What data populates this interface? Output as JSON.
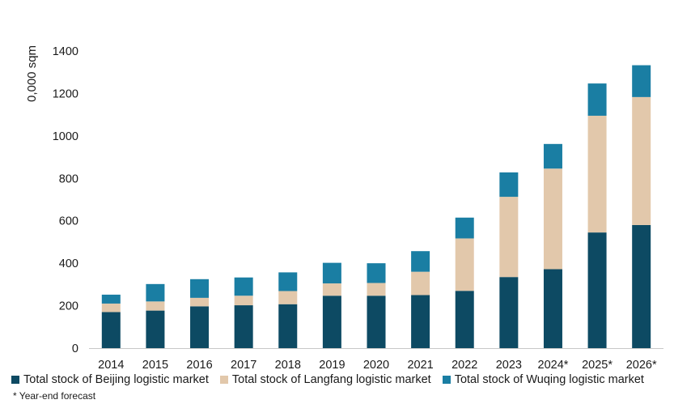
{
  "chart_data": {
    "type": "bar",
    "stacked": true,
    "ylabel": "0,000 sqm",
    "ylim": [
      0,
      1400
    ],
    "yticks": [
      0,
      200,
      400,
      600,
      800,
      1000,
      1200,
      1400
    ],
    "grid": false,
    "legend_position": "bottom",
    "categories": [
      "2014",
      "2015",
      "2016",
      "2017",
      "2018",
      "2019",
      "2020",
      "2021",
      "2022",
      "2023",
      "2024*",
      "2025*",
      "2026*"
    ],
    "series": [
      {
        "name": "Total stock of Beijing logistic market",
        "color": "#0d4a63",
        "values": [
          170,
          177,
          197,
          202,
          207,
          247,
          247,
          250,
          270,
          335,
          372,
          545,
          580
        ]
      },
      {
        "name": "Total stock of Langfang logistic market",
        "color": "#e2c8ab",
        "values": [
          40,
          43,
          40,
          45,
          62,
          58,
          60,
          110,
          247,
          378,
          474,
          550,
          603
        ]
      },
      {
        "name": "Total stock of Wuqing logistic market",
        "color": "#1a7ea3",
        "values": [
          42,
          82,
          88,
          86,
          88,
          97,
          93,
          97,
          98,
          115,
          116,
          152,
          150
        ]
      }
    ],
    "footnote": "* Year-end forecast"
  }
}
